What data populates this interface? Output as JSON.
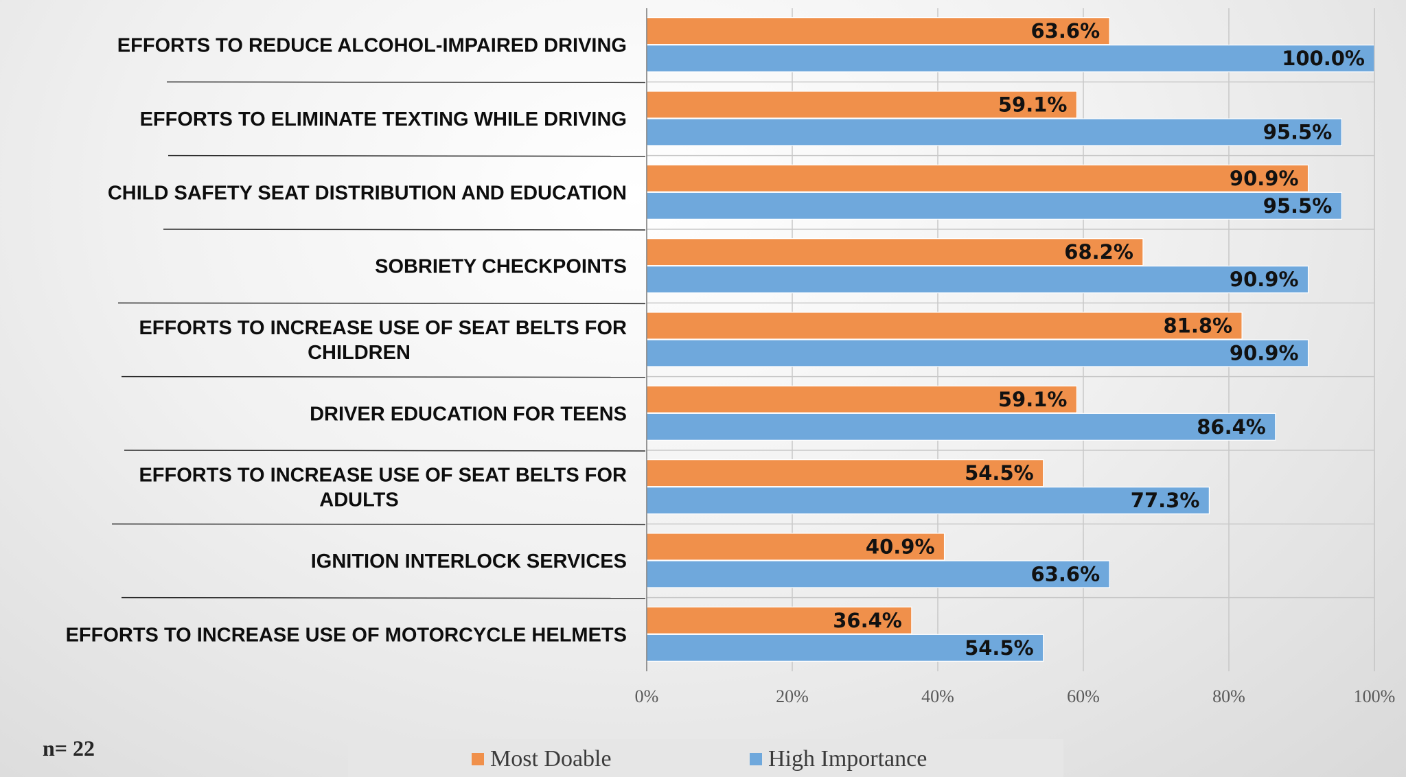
{
  "chart_data": {
    "type": "bar",
    "orientation": "horizontal",
    "categories": [
      "EFFORTS TO REDUCE ALCOHOL-IMPAIRED DRIVING",
      "EFFORTS TO ELIMINATE TEXTING WHILE DRIVING",
      "CHILD SAFETY SEAT DISTRIBUTION AND EDUCATION",
      "SOBRIETY CHECKPOINTS",
      "EFFORTS TO INCREASE USE OF SEAT BELTS FOR CHILDREN",
      "DRIVER EDUCATION FOR TEENS",
      "EFFORTS TO INCREASE USE OF SEAT BELTS FOR ADULTS",
      "IGNITION INTERLOCK SERVICES",
      "EFFORTS TO INCREASE USE OF MOTORCYCLE HELMETS"
    ],
    "category_lines": [
      [
        "EFFORTS TO REDUCE ALCOHOL-IMPAIRED DRIVING"
      ],
      [
        "EFFORTS TO ELIMINATE TEXTING WHILE DRIVING"
      ],
      [
        "CHILD SAFETY SEAT DISTRIBUTION AND EDUCATION"
      ],
      [
        "SOBRIETY CHECKPOINTS"
      ],
      [
        "EFFORTS TO INCREASE USE OF SEAT BELTS FOR",
        "CHILDREN"
      ],
      [
        "DRIVER EDUCATION FOR TEENS"
      ],
      [
        "EFFORTS TO INCREASE USE OF SEAT BELTS FOR",
        "ADULTS"
      ],
      [
        "IGNITION INTERLOCK SERVICES"
      ],
      [
        "EFFORTS TO INCREASE USE OF MOTORCYCLE HELMETS"
      ]
    ],
    "series": [
      {
        "name": "Most Doable",
        "color": "#f0904b",
        "values": [
          63.6,
          59.1,
          90.9,
          68.2,
          81.8,
          59.1,
          54.5,
          40.9,
          36.4
        ],
        "labels": [
          "63.6%",
          "59.1%",
          "90.9%",
          "68.2%",
          "81.8%",
          "59.1%",
          "54.5%",
          "40.9%",
          "36.4%"
        ]
      },
      {
        "name": "High Importance",
        "color": "#6fa8dc",
        "values": [
          100.0,
          95.5,
          95.5,
          90.9,
          90.9,
          86.4,
          77.3,
          63.6,
          54.5
        ],
        "labels": [
          "100.0%",
          "95.5%",
          "95.5%",
          "90.9%",
          "90.9%",
          "86.4%",
          "77.3%",
          "63.6%",
          "54.5%"
        ]
      }
    ],
    "xlim": [
      0,
      100
    ],
    "xticks": [
      "0%",
      "20%",
      "40%",
      "60%",
      "80%",
      "100%"
    ],
    "grid": true,
    "legend_position": "bottom",
    "title": "",
    "xlabel": "",
    "ylabel": ""
  },
  "note": "n= 22",
  "legend": {
    "most_doable": "Most Doable",
    "high_importance": "High Importance"
  }
}
